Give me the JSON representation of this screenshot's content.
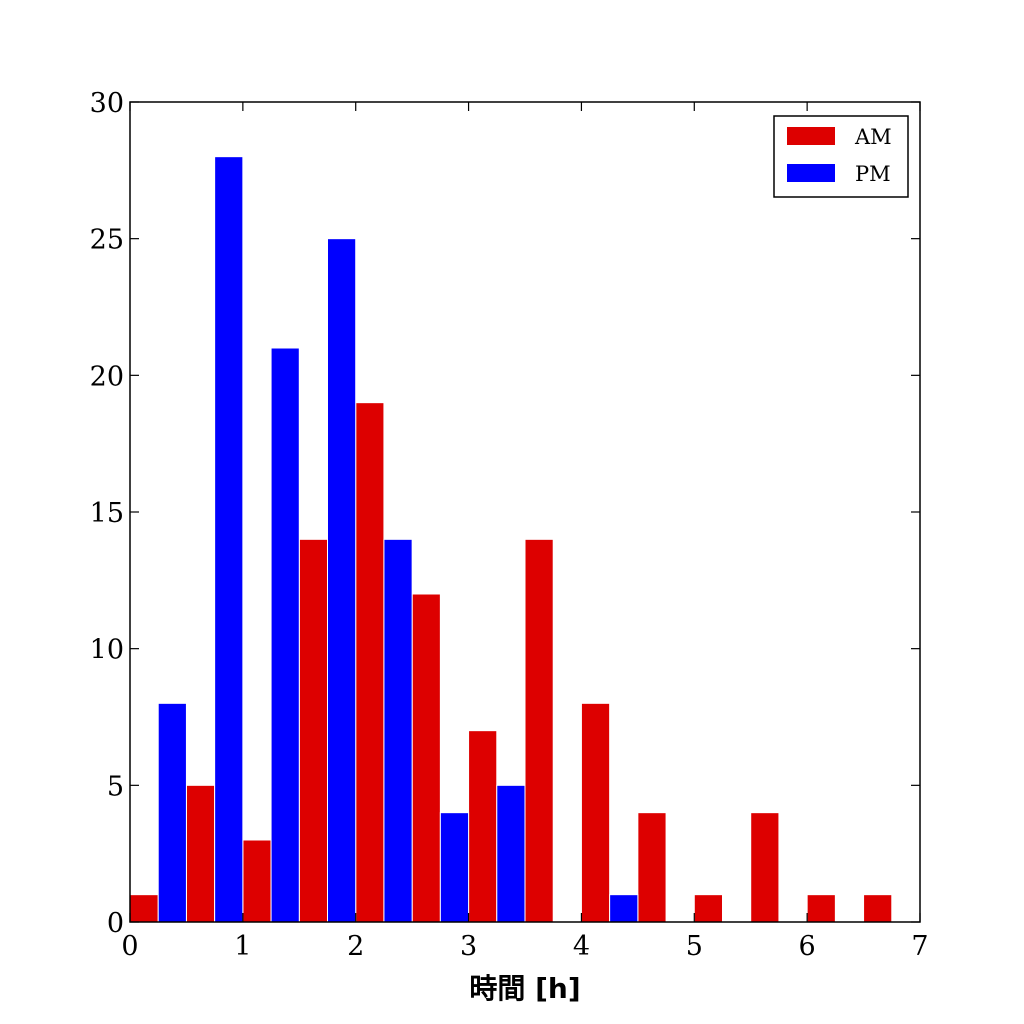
{
  "chart_data": {
    "type": "bar",
    "title": "",
    "xlabel": "時間 [h]",
    "ylabel": "",
    "xlim": [
      0,
      7
    ],
    "ylim": [
      0,
      30
    ],
    "x_ticks": [
      0,
      1,
      2,
      3,
      4,
      5,
      6,
      7
    ],
    "y_ticks": [
      0,
      5,
      10,
      15,
      20,
      25,
      30
    ],
    "bin_width": 0.5,
    "bin_starts": [
      0,
      0.5,
      1,
      1.5,
      2,
      2.5,
      3,
      3.5,
      4,
      4.5,
      5,
      5.5,
      6,
      6.5
    ],
    "series": [
      {
        "name": "AM",
        "color": "#dd0000",
        "values": [
          1,
          5,
          3,
          14,
          19,
          12,
          7,
          14,
          8,
          4,
          1,
          4,
          1,
          1
        ]
      },
      {
        "name": "PM",
        "color": "#0000ff",
        "values": [
          8,
          28,
          21,
          25,
          14,
          4,
          5,
          0,
          1,
          0,
          0,
          0,
          0,
          0
        ]
      }
    ],
    "grid": false,
    "legend_position": "top-right"
  }
}
